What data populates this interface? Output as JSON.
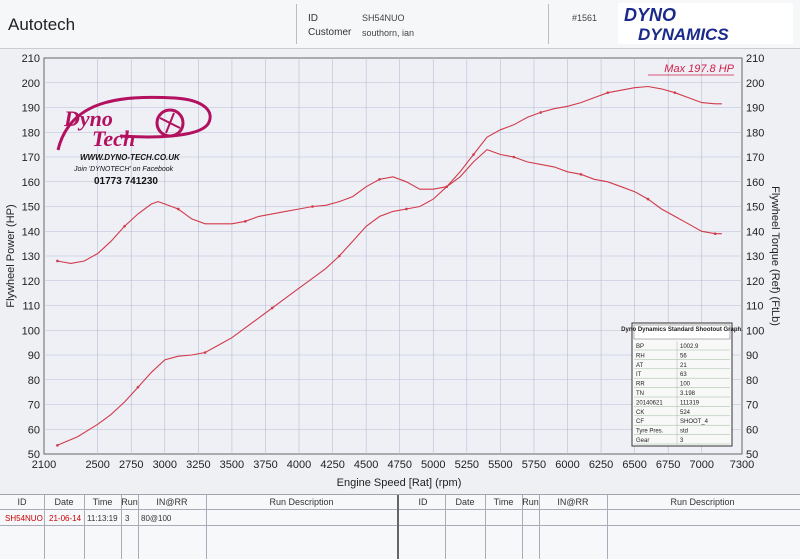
{
  "header": {
    "title": "Autotech",
    "id_label": "ID",
    "id_value": "SH54NUO",
    "customer_label": "Customer",
    "customer_value": "southorn, ian",
    "run_no": "#1561",
    "logo_top": "DYNO",
    "logo_bottom": "DYNAMICS"
  },
  "stamp": {
    "brand_line1": "Dyno",
    "brand_line2": "Tech",
    "website": "WWW.DYNO-TECH.CO.UK",
    "facebook": "Join 'DYNOTECH' on Facebook",
    "phone": "01773 741230"
  },
  "chart_data": {
    "type": "line",
    "xlabel": "Engine Speed [Rat] (rpm)",
    "ylabel_left": "Flywheel Power (HP)",
    "ylabel_right": "Flywheel Torque (Ref) (FtLb)",
    "xlim": [
      2100,
      7300
    ],
    "ylim": [
      50,
      210
    ],
    "x_ticks": [
      2100,
      2500,
      2750,
      3000,
      3250,
      3500,
      3750,
      4000,
      4250,
      4500,
      4750,
      5000,
      5250,
      5500,
      5750,
      6000,
      6250,
      6500,
      6750,
      7000,
      7300
    ],
    "y_ticks": [
      50,
      60,
      70,
      80,
      90,
      100,
      110,
      120,
      130,
      140,
      150,
      160,
      170,
      180,
      190,
      200,
      210
    ],
    "annotation": "Max 197.8 HP",
    "grid": true,
    "series": [
      {
        "color": "#d23a4a",
        "points": [
          [
            2200,
            53.5
          ],
          [
            2350,
            57
          ],
          [
            2500,
            62
          ],
          [
            2600,
            66
          ],
          [
            2700,
            71
          ],
          [
            2800,
            77
          ],
          [
            2900,
            83
          ],
          [
            3000,
            88
          ],
          [
            3100,
            89.5
          ],
          [
            3200,
            90
          ],
          [
            3300,
            91
          ],
          [
            3400,
            94
          ],
          [
            3500,
            97
          ],
          [
            3600,
            101
          ],
          [
            3700,
            105
          ],
          [
            3800,
            109
          ],
          [
            3900,
            113
          ],
          [
            4000,
            117
          ],
          [
            4100,
            121
          ],
          [
            4200,
            125
          ],
          [
            4300,
            130
          ],
          [
            4400,
            136
          ],
          [
            4500,
            142
          ],
          [
            4600,
            146
          ],
          [
            4700,
            148
          ],
          [
            4800,
            149
          ],
          [
            4900,
            150
          ],
          [
            5000,
            153
          ],
          [
            5100,
            158
          ],
          [
            5200,
            164
          ],
          [
            5300,
            171
          ],
          [
            5400,
            178
          ],
          [
            5500,
            181
          ],
          [
            5600,
            183
          ],
          [
            5700,
            186
          ],
          [
            5800,
            188
          ],
          [
            5900,
            189.5
          ],
          [
            6000,
            190.5
          ],
          [
            6100,
            192
          ],
          [
            6200,
            194
          ],
          [
            6300,
            196
          ],
          [
            6400,
            197
          ],
          [
            6500,
            198
          ],
          [
            6600,
            198.5
          ],
          [
            6700,
            197.5
          ],
          [
            6800,
            196
          ],
          [
            6900,
            194
          ],
          [
            7000,
            192
          ],
          [
            7100,
            191.5
          ],
          [
            7150,
            191.5
          ]
        ]
      },
      {
        "color": "#d23a4a",
        "points": [
          [
            2200,
            128
          ],
          [
            2300,
            127
          ],
          [
            2400,
            128
          ],
          [
            2500,
            131
          ],
          [
            2600,
            136
          ],
          [
            2700,
            142
          ],
          [
            2800,
            147
          ],
          [
            2900,
            151
          ],
          [
            2950,
            152
          ],
          [
            3000,
            151
          ],
          [
            3100,
            149
          ],
          [
            3200,
            145
          ],
          [
            3300,
            143
          ],
          [
            3400,
            143
          ],
          [
            3500,
            143
          ],
          [
            3600,
            144
          ],
          [
            3700,
            146
          ],
          [
            3800,
            147
          ],
          [
            3900,
            148
          ],
          [
            4000,
            149
          ],
          [
            4100,
            150
          ],
          [
            4200,
            150.5
          ],
          [
            4300,
            152
          ],
          [
            4400,
            154
          ],
          [
            4500,
            158
          ],
          [
            4600,
            161
          ],
          [
            4700,
            162
          ],
          [
            4800,
            160
          ],
          [
            4900,
            157
          ],
          [
            5000,
            157
          ],
          [
            5100,
            158
          ],
          [
            5200,
            162
          ],
          [
            5300,
            168
          ],
          [
            5400,
            173
          ],
          [
            5500,
            171
          ],
          [
            5600,
            170
          ],
          [
            5700,
            168
          ],
          [
            5800,
            167
          ],
          [
            5900,
            166
          ],
          [
            6000,
            164
          ],
          [
            6100,
            163
          ],
          [
            6200,
            161
          ],
          [
            6300,
            160
          ],
          [
            6400,
            158
          ],
          [
            6500,
            156
          ],
          [
            6600,
            153
          ],
          [
            6700,
            149
          ],
          [
            6800,
            146
          ],
          [
            6900,
            143
          ],
          [
            7000,
            140
          ],
          [
            7100,
            139
          ],
          [
            7150,
            139
          ]
        ]
      }
    ],
    "info_box": {
      "title": "Dyno Dynamics Standard Shootout Graph.",
      "rows": [
        [
          "BP",
          "1002.9"
        ],
        [
          "RH",
          "56"
        ],
        [
          "AT",
          "21"
        ],
        [
          "IT",
          "63"
        ],
        [
          "RR",
          "100"
        ],
        [
          "TN",
          "3.198"
        ],
        [
          "20140621",
          "111319"
        ],
        [
          "CK",
          "524"
        ],
        [
          "CF",
          "SHOOT_4"
        ],
        [
          "Tyre Pres.",
          "std"
        ],
        [
          "Gear",
          "3"
        ]
      ]
    }
  },
  "table": {
    "headers": [
      "ID",
      "Date",
      "Time",
      "Run",
      "IN@RR",
      "Run Description"
    ],
    "row": {
      "id": "SH54NUO",
      "date": "21-06-14",
      "time": "11:13:19",
      "run": "3",
      "in_rr": "80@100",
      "desc": ""
    }
  }
}
